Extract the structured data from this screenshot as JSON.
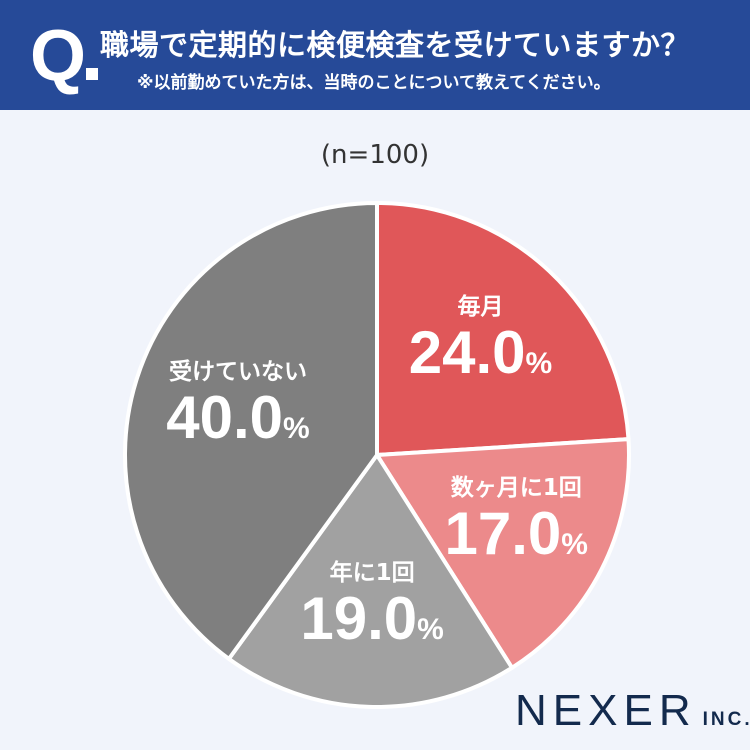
{
  "header": {
    "q_mark": "Q",
    "title": "職場で定期的に検便検査を受けていますか？",
    "subtitle": "※以前勤めていた方は、当時のことについて教えてください。"
  },
  "chart_data": {
    "type": "pie",
    "note": "(n=100)",
    "start": "top",
    "direction": "clockwise",
    "slices": [
      {
        "label": "毎月",
        "value": 24.0,
        "display": "24.0",
        "color": "#e05759"
      },
      {
        "label": "数ヶ月に1回",
        "value": 17.0,
        "display": "17.0",
        "color": "#ec8a8b"
      },
      {
        "label": "年に1回",
        "value": 19.0,
        "display": "19.0",
        "color": "#a1a1a1"
      },
      {
        "label": "受けていない",
        "value": 40.0,
        "display": "40.0",
        "color": "#7f7f7f"
      }
    ],
    "unit": "%"
  },
  "logo": {
    "name": "NEXER",
    "suffix": "INC."
  }
}
